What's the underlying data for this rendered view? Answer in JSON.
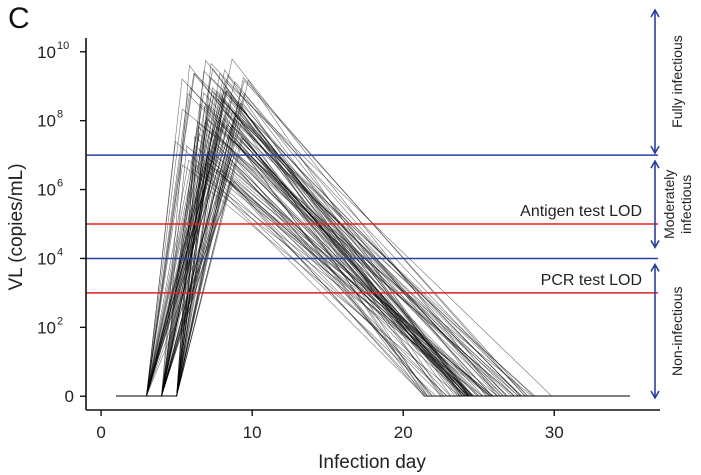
{
  "panel_label": "C",
  "chart_data": {
    "type": "line",
    "xlabel": "Infection day",
    "ylabel": "VL (copies/mL)",
    "xlim": [
      -1,
      37
    ],
    "xticks": [
      0,
      10,
      20,
      30
    ],
    "ylim_log10": [
      -0.4,
      10.4
    ],
    "yscale": "log10 (0 plotted at bottom)",
    "ytick_exponents": [
      0,
      2,
      4,
      6,
      8,
      10
    ],
    "ytick_zero_label": "0",
    "ytick_base": "10",
    "grid": false,
    "thresholds": [
      {
        "label": "Antigen test LOD",
        "value_log10": 5,
        "color": "#e02020"
      },
      {
        "label": "PCR test LOD",
        "value_log10": 3,
        "color": "#e02020"
      },
      {
        "label": "",
        "value_log10": 7,
        "color": "#2b3f9e"
      },
      {
        "label": "",
        "value_log10": 4,
        "color": "#2b3f9e"
      }
    ],
    "zones": [
      {
        "label": "Fully infectious",
        "from_log10": 7,
        "to_log10": 10.5
      },
      {
        "label": "Moderately infectious",
        "from_log10": 4,
        "to_log10": 7
      },
      {
        "label": "Non-infectious",
        "from_log10": 0,
        "to_log10": 4
      }
    ],
    "trajectory_model": {
      "description": "Simulated viral-load trajectories: baseline at 0 from day 1, exponential rise starting on day 3, 4 or 5, peak on days ~6-9, linear decline in log10 to zero around days 19-31, then 0 until day 35.",
      "count": 100,
      "start_day": 1,
      "end_day": 35,
      "onset_days": [
        3,
        4,
        5
      ],
      "peak_day_range": [
        5.5,
        9.5
      ],
      "peak_log10_range": [
        6.0,
        9.8
      ],
      "clear_day_range": [
        19,
        31
      ]
    }
  },
  "colors": {
    "trajectory": "#000000",
    "axis": "#111111",
    "blue": "#2b3f9e",
    "red": "#e02020"
  }
}
